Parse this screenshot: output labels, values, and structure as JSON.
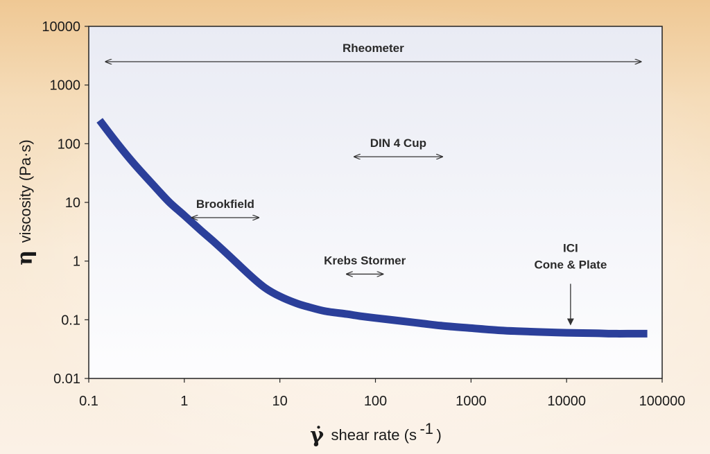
{
  "chart_data": {
    "type": "line",
    "x_scale": "log",
    "y_scale": "log",
    "xlim": [
      0.1,
      100000
    ],
    "ylim": [
      0.01,
      10000
    ],
    "x_ticks": [
      "0.1",
      "1",
      "10",
      "100",
      "1000",
      "10000",
      "100000"
    ],
    "y_ticks": [
      "0.01",
      "0.1",
      "1",
      "10",
      "100",
      "1000",
      "10000"
    ],
    "xlabel": {
      "symbol": "γ̇",
      "text": "shear rate (s",
      "sup": "-1",
      "close": ")"
    },
    "ylabel": {
      "symbol": "η",
      "text": "viscosity (Pa·s)"
    },
    "grid": false,
    "legend": "none",
    "series": [
      {
        "color": "#2b3f9a",
        "x": [
          0.13,
          0.2,
          0.3,
          0.5,
          0.7,
          1,
          1.5,
          2,
          3,
          5,
          7,
          10,
          15,
          20,
          30,
          50,
          70,
          100,
          200,
          300,
          500,
          1000,
          2000,
          3000,
          5000,
          10000,
          20000,
          30000,
          50000,
          70000
        ],
        "y": [
          250,
          100,
          45,
          18,
          10,
          6,
          3.3,
          2.2,
          1.2,
          0.55,
          0.35,
          0.25,
          0.19,
          0.165,
          0.14,
          0.125,
          0.115,
          0.107,
          0.094,
          0.087,
          0.079,
          0.072,
          0.066,
          0.064,
          0.062,
          0.06,
          0.059,
          0.058,
          0.058,
          0.058
        ]
      }
    ],
    "annotations": [
      {
        "label": "Rheometer",
        "kind": "range",
        "x_from": 0.15,
        "x_to": 60000,
        "y": 2500
      },
      {
        "label": "DIN 4 Cup",
        "kind": "range",
        "x_from": 60,
        "x_to": 500,
        "y": 60
      },
      {
        "label": "Brookfield",
        "kind": "range",
        "x_from": 1.2,
        "x_to": 6,
        "y": 5.5
      },
      {
        "label": "Krebs Stormer",
        "kind": "range",
        "x_from": 50,
        "x_to": 120,
        "y": 0.6
      },
      {
        "label": "ICI\nCone & Plate",
        "kind": "down-arrow",
        "x": 11000,
        "y_from": 0.6,
        "y_to": 0.07
      }
    ]
  },
  "colors": {
    "curve": "#2b3f9a",
    "plot_bg_top": "#e9ebf4",
    "plot_bg_bottom": "#fdfdfe",
    "axis": "#222222",
    "arrows": "#333333"
  }
}
